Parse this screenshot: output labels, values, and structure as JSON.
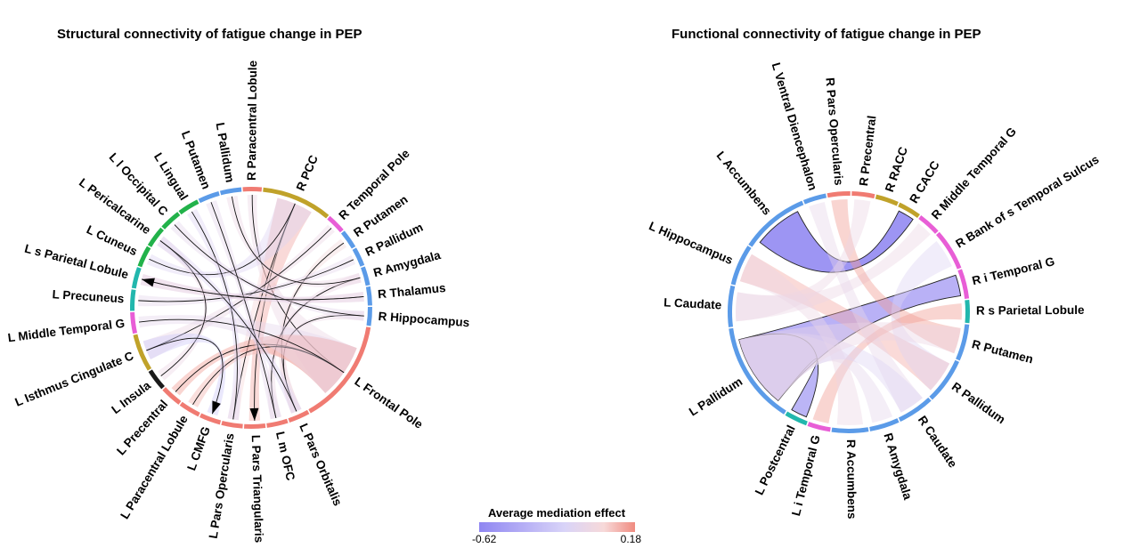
{
  "chart_data": [
    {
      "type": "chord",
      "title": "Structural connectivity of fatigue change in PEP",
      "nodes": [
        {
          "label": "R Paracentral Lobule",
          "color": "#f07b72",
          "weight": 0.8
        },
        {
          "label": "R PCC",
          "color": "#c0a22a",
          "weight": 3.0
        },
        {
          "label": "R Temporal Pole",
          "color": "#e85ed6",
          "weight": 0.8
        },
        {
          "label": "R Putamen",
          "color": "#5b9be8",
          "weight": 0.8
        },
        {
          "label": "R Pallidum",
          "color": "#5b9be8",
          "weight": 0.8
        },
        {
          "label": "R Amygdala",
          "color": "#5b9be8",
          "weight": 0.8
        },
        {
          "label": "R Thalamus",
          "color": "#5b9be8",
          "weight": 0.8
        },
        {
          "label": "R Hippocampus",
          "color": "#5b9be8",
          "weight": 0.8
        },
        {
          "label": "L Frontal Pole",
          "color": "#f07b72",
          "weight": 4.5
        },
        {
          "label": "L Pars Orbitalis",
          "color": "#f07b72",
          "weight": 0.9
        },
        {
          "label": "L m OFC",
          "color": "#f07b72",
          "weight": 0.9
        },
        {
          "label": "L Pars Triangularis",
          "color": "#f07b72",
          "weight": 0.9
        },
        {
          "label": "L Pars Opercularis",
          "color": "#f07b72",
          "weight": 0.9
        },
        {
          "label": "L CMFG",
          "color": "#f07b72",
          "weight": 0.9
        },
        {
          "label": "L Paracentral Lobule",
          "color": "#f07b72",
          "weight": 0.9
        },
        {
          "label": "L Precentral",
          "color": "#f07b72",
          "weight": 0.9
        },
        {
          "label": "L Insula",
          "color": "#1a1a1a",
          "weight": 0.9
        },
        {
          "label": "L Isthmus Cingulate C",
          "color": "#c0a22a",
          "weight": 1.6
        },
        {
          "label": "L Middle Temporal G",
          "color": "#e85ed6",
          "weight": 0.9
        },
        {
          "label": "L Precuneus",
          "color": "#22b7ad",
          "weight": 0.9
        },
        {
          "label": "L s Parietal Lobule",
          "color": "#22b7ad",
          "weight": 0.9
        },
        {
          "label": "L Cuneus",
          "color": "#22b24a",
          "weight": 0.9
        },
        {
          "label": "L Pericalcarine",
          "color": "#22b24a",
          "weight": 0.9
        },
        {
          "label": "L l Occipital C",
          "color": "#22b24a",
          "weight": 0.9
        },
        {
          "label": "L Lingual",
          "color": "#22b24a",
          "weight": 0.9
        },
        {
          "label": "L Putamen",
          "color": "#5b9be8",
          "weight": 0.9
        },
        {
          "label": "L Pallidum",
          "color": "#5b9be8",
          "weight": 0.9
        }
      ],
      "links": [
        {
          "from": "R Paracentral Lobule",
          "to": "L Frontal Pole",
          "value": -0.05,
          "arrow": false
        },
        {
          "from": "R PCC",
          "to": "L Pars Triangularis",
          "value": 0.12,
          "arrow": true
        },
        {
          "from": "R PCC",
          "to": "L Pars Opercularis",
          "value": 0.02,
          "arrow": false
        },
        {
          "from": "R PCC",
          "to": "L Cuneus",
          "value": -0.15,
          "arrow": false
        },
        {
          "from": "R Temporal Pole",
          "to": "L Isthmus Cingulate C",
          "value": -0.05,
          "arrow": false
        },
        {
          "from": "R Putamen",
          "to": "L Pars Orbitalis",
          "value": 0.0,
          "arrow": false
        },
        {
          "from": "R Pallidum",
          "to": "L Precuneus",
          "value": -0.1,
          "arrow": false
        },
        {
          "from": "R Amygdala",
          "to": "L m OFC",
          "value": -0.05,
          "arrow": false
        },
        {
          "from": "R Thalamus",
          "to": "L s Parietal Lobule",
          "value": -0.1,
          "arrow": false
        },
        {
          "from": "R Hippocampus",
          "to": "L Pars Orbitalis",
          "value": -0.05,
          "arrow": false
        },
        {
          "from": "L Frontal Pole",
          "to": "L Precentral",
          "value": 0.15,
          "arrow": false
        },
        {
          "from": "L Frontal Pole",
          "to": "L Paracentral Lobule",
          "value": 0.1,
          "arrow": false
        },
        {
          "from": "L Frontal Pole",
          "to": "L Middle Temporal G",
          "value": -0.1,
          "arrow": false
        },
        {
          "from": "L Insula",
          "to": "L Pericalcarine",
          "value": -0.05,
          "arrow": false
        },
        {
          "from": "L Isthmus Cingulate C",
          "to": "L CMFG",
          "value": -0.25,
          "arrow": true
        },
        {
          "from": "L Lingual",
          "to": "L Pars Opercularis",
          "value": -0.15,
          "arrow": false
        },
        {
          "from": "L l Occipital C",
          "to": "R Hippocampus",
          "value": -0.1,
          "arrow": false
        },
        {
          "from": "L Putamen",
          "to": "L m OFC",
          "value": -0.1,
          "arrow": false
        },
        {
          "from": "L Pallidum",
          "to": "R Amygdala",
          "value": -0.05,
          "arrow": false
        },
        {
          "from": "L Pericalcarine",
          "to": "L Pars Orbitalis",
          "value": -0.15,
          "arrow": false
        },
        {
          "from": "R Thalamus",
          "to": "L s Parietal Lobule",
          "value": -0.05,
          "arrow": true
        }
      ]
    },
    {
      "type": "chord",
      "title": "Functional connectivity of fatigue change in PEP",
      "nodes": [
        {
          "label": "R Pars Opercularis",
          "color": "#f07b72",
          "weight": 1.0
        },
        {
          "label": "R Precentral",
          "color": "#f07b72",
          "weight": 1.0
        },
        {
          "label": "R RACC",
          "color": "#c0a22a",
          "weight": 1.0
        },
        {
          "label": "R CACC",
          "color": "#c0a22a",
          "weight": 1.0
        },
        {
          "label": "R Middle Temporal G",
          "color": "#e85ed6",
          "weight": 1.0
        },
        {
          "label": "R Bank of s Temporal Sulcus",
          "color": "#e85ed6",
          "weight": 1.8
        },
        {
          "label": "R i Temporal G",
          "color": "#e85ed6",
          "weight": 1.3
        },
        {
          "label": "R s Parietal Lobule",
          "color": "#22b7ad",
          "weight": 1.0
        },
        {
          "label": "R Putamen",
          "color": "#5b9be8",
          "weight": 1.6
        },
        {
          "label": "R Pallidum",
          "color": "#5b9be8",
          "weight": 2.0
        },
        {
          "label": "R Caudate",
          "color": "#5b9be8",
          "weight": 1.6
        },
        {
          "label": "R Amygdala",
          "color": "#5b9be8",
          "weight": 1.3
        },
        {
          "label": "R Accumbens",
          "color": "#5b9be8",
          "weight": 1.6
        },
        {
          "label": "L i Temporal G",
          "color": "#e85ed6",
          "weight": 1.0
        },
        {
          "label": "L Postcentral",
          "color": "#22b7ad",
          "weight": 1.0
        },
        {
          "label": "L Pallidum",
          "color": "#5b9be8",
          "weight": 4.5
        },
        {
          "label": "L Caudate",
          "color": "#5b9be8",
          "weight": 1.8
        },
        {
          "label": "L Hippocampus",
          "color": "#5b9be8",
          "weight": 1.8
        },
        {
          "label": "L Accumbens",
          "color": "#5b9be8",
          "weight": 3.0
        },
        {
          "label": "L Ventral Diencephalon",
          "color": "#5b9be8",
          "weight": 1.0
        }
      ],
      "links": [
        {
          "from": "L Accumbens",
          "to": "R CACC",
          "value": -0.6,
          "emphasis": true
        },
        {
          "from": "L Pallidum",
          "to": "R i Temporal G",
          "value": -0.42,
          "emphasis": true
        },
        {
          "from": "L Pallidum",
          "to": "L Postcentral",
          "value": -0.4,
          "emphasis": true
        },
        {
          "from": "L Hippocampus",
          "to": "R Pallidum",
          "value": 0.12,
          "emphasis": false
        },
        {
          "from": "L Caudate",
          "to": "R Middle Temporal G",
          "value": -0.05,
          "emphasis": false
        },
        {
          "from": "L Ventral Diencephalon",
          "to": "R Caudate",
          "value": -0.08,
          "emphasis": false
        },
        {
          "from": "R Pars Opercularis",
          "to": "R Putamen",
          "value": 0.15,
          "emphasis": false
        },
        {
          "from": "R Precentral",
          "to": "L Caudate",
          "value": -0.05,
          "emphasis": false
        },
        {
          "from": "R Bank of s Temporal Sulcus",
          "to": "R Pallidum",
          "value": -0.15,
          "emphasis": false
        },
        {
          "from": "R s Parietal Lobule",
          "to": "L i Temporal G",
          "value": 0.15,
          "emphasis": false
        },
        {
          "from": "R Amygdala",
          "to": "L Pallidum",
          "value": -0.1,
          "emphasis": false
        },
        {
          "from": "R Accumbens",
          "to": "L Hippocampus",
          "value": -0.05,
          "emphasis": false
        },
        {
          "from": "R Caudate",
          "to": "L Pallidum",
          "value": -0.15,
          "emphasis": false
        },
        {
          "from": "L Pallidum",
          "to": "R Putamen",
          "value": -0.05,
          "emphasis": false
        }
      ]
    }
  ],
  "legend": {
    "title": "Average mediation effect",
    "min_label": "-0.62",
    "max_label": "0.18",
    "min": -0.62,
    "max": 0.18,
    "colors": [
      "#8f86f2",
      "#d9d4f8",
      "#f7d9d9",
      "#f08b80"
    ]
  }
}
